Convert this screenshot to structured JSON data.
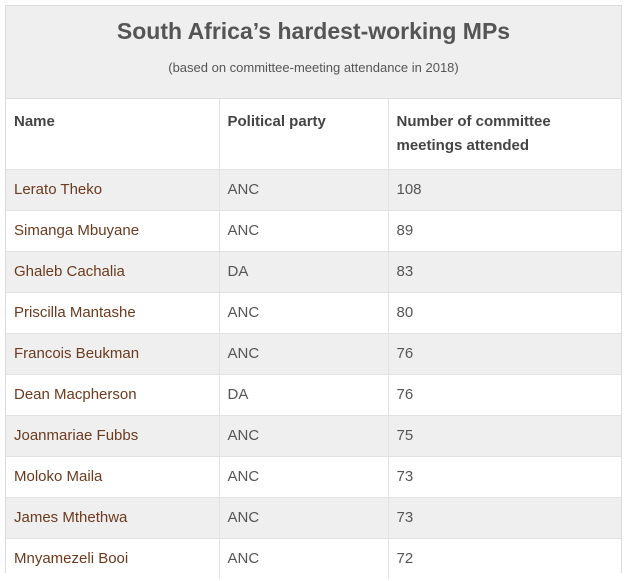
{
  "title": "South Africa’s hardest-working MPs",
  "subtitle": "(based on committee-meeting attendance in 2018)",
  "columns": {
    "name": "Name",
    "party": "Political party",
    "meetings": "Number of committee meetings attended"
  },
  "rows": [
    {
      "name": "Lerato Theko",
      "party": "ANC",
      "meetings": "108"
    },
    {
      "name": "Simanga Mbuyane",
      "party": "ANC",
      "meetings": "89"
    },
    {
      "name": "Ghaleb Cachalia",
      "party": "DA",
      "meetings": "83"
    },
    {
      "name": "Priscilla Mantashe",
      "party": "ANC",
      "meetings": "80"
    },
    {
      "name": "Francois Beukman",
      "party": "ANC",
      "meetings": "76"
    },
    {
      "name": "Dean Macpherson",
      "party": "DA",
      "meetings": "76"
    },
    {
      "name": "Joanmariae Fubbs",
      "party": "ANC",
      "meetings": "75"
    },
    {
      "name": "Moloko Maila",
      "party": "ANC",
      "meetings": "73"
    },
    {
      "name": "James Mthethwa",
      "party": "ANC",
      "meetings": "73"
    },
    {
      "name": "Mnyamezeli Booi",
      "party": "ANC",
      "meetings": "72"
    }
  ],
  "colors": {
    "header_background": "#efefef",
    "name_text": "#6b3a1f",
    "body_text": "#555555",
    "border": "#dcdcdc"
  }
}
